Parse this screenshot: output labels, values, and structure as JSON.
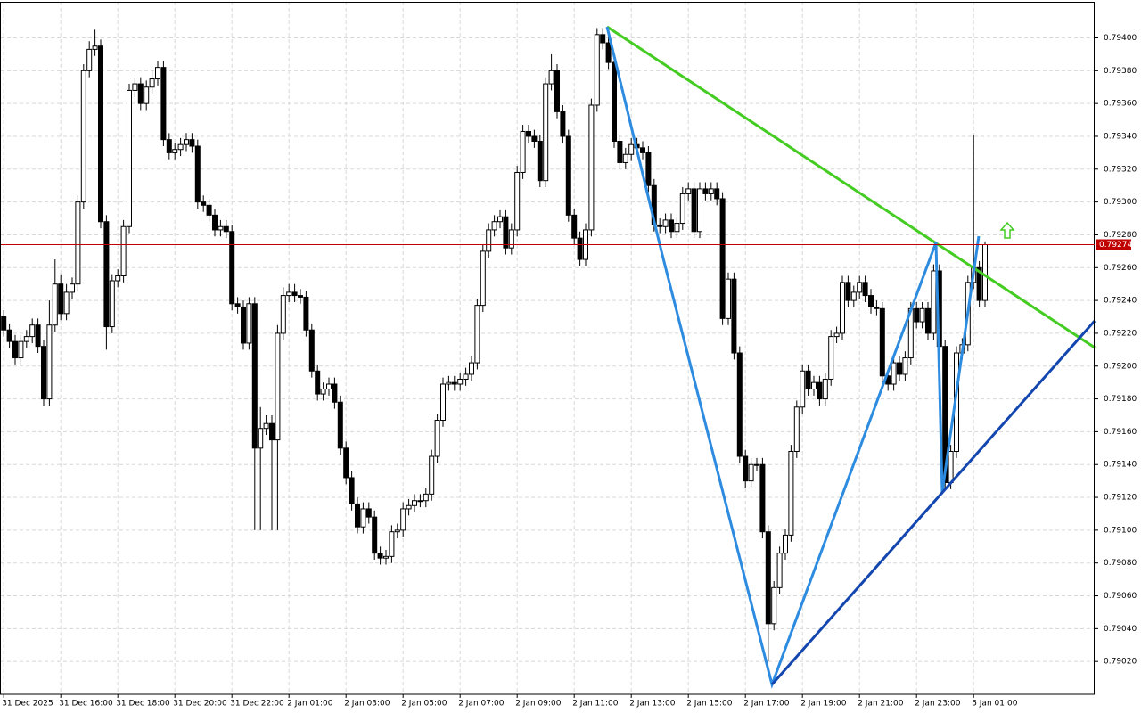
{
  "chart_data": {
    "type": "candlestick",
    "categories": [
      "31 Dec 2025",
      null,
      null,
      null,
      null,
      null,
      null,
      null,
      null,
      null,
      "31 Dec 16:00",
      null,
      null,
      null,
      null,
      null,
      null,
      null,
      null,
      null,
      "31 Dec 18:00",
      null,
      null,
      null,
      null,
      null,
      null,
      null,
      null,
      null,
      "31 Dec 20:00",
      null,
      null,
      null,
      null,
      null,
      null,
      null,
      null,
      null,
      "31 Dec 22:00",
      null,
      null,
      null,
      null,
      null,
      null,
      null,
      null,
      null,
      "2 Jan 01:00",
      null,
      null,
      null,
      null,
      null,
      null,
      null,
      null,
      null,
      "2 Jan 03:00",
      null,
      null,
      null,
      null,
      null,
      null,
      null,
      null,
      null,
      "2 Jan 05:00",
      null,
      null,
      null,
      null,
      null,
      null,
      null,
      null,
      null,
      "2 Jan 07:00",
      null,
      null,
      null,
      null,
      null,
      null,
      null,
      null,
      null,
      "2 Jan 09:00",
      null,
      null,
      null,
      null,
      null,
      null,
      null,
      null,
      null,
      "2 Jan 11:00",
      null,
      null,
      null,
      null,
      null,
      null,
      null,
      null,
      null,
      "2 Jan 13:00",
      null,
      null,
      null,
      null,
      null,
      null,
      null,
      null,
      null,
      "2 Jan 15:00",
      null,
      null,
      null,
      null,
      null,
      null,
      null,
      null,
      null,
      "2 Jan 17:00",
      null,
      null,
      null,
      null,
      null,
      null,
      null,
      null,
      null,
      "2 Jan 19:00",
      null,
      null,
      null,
      null,
      null,
      null,
      null,
      null,
      null,
      "2 Jan 21:00",
      null,
      null,
      null,
      null,
      null,
      null,
      null,
      null,
      null,
      "2 Jan 23:00",
      null,
      null,
      null,
      null,
      null,
      null,
      null,
      null,
      null,
      "5 Jan 01:00",
      null,
      null
    ],
    "open": [
      0.7923,
      0.79222,
      0.79215,
      0.79205,
      0.79215,
      0.79218,
      0.79225,
      0.79212,
      0.7918,
      0.79225,
      0.7925,
      0.79232,
      0.79245,
      0.7925,
      0.793,
      0.7938,
      0.79393,
      0.79395,
      0.79288,
      0.79224,
      0.79252,
      0.79255,
      0.79285,
      0.79368,
      0.79372,
      0.7936,
      0.7937,
      0.79375,
      0.79382,
      0.79338,
      0.7933,
      0.79332,
      0.79335,
      0.79338,
      0.79334,
      0.793,
      0.79298,
      0.79292,
      0.79283,
      0.79285,
      0.79282,
      0.79238,
      0.79236,
      0.79214,
      0.79238,
      0.7915,
      0.79162,
      0.79165,
      0.79155,
      0.7922,
      0.79243,
      0.79245,
      0.79243,
      0.79242,
      0.79222,
      0.79197,
      0.79183,
      0.79186,
      0.79189,
      0.79178,
      0.7915,
      0.79132,
      0.79116,
      0.79102,
      0.79113,
      0.79108,
      0.79086,
      0.79083,
      0.79084,
      0.79099,
      0.791,
      0.79113,
      0.79115,
      0.79118,
      0.79118,
      0.79122,
      0.79145,
      0.79167,
      0.79189,
      0.7919,
      0.79189,
      0.79192,
      0.79195,
      0.79202,
      0.79237,
      0.7927,
      0.79283,
      0.79288,
      0.79291,
      0.79272,
      0.79283,
      0.79318,
      0.79343,
      0.7934,
      0.79337,
      0.79313,
      0.79372,
      0.7938,
      0.79355,
      0.7934,
      0.79292,
      0.79278,
      0.79265,
      0.79283,
      0.79359,
      0.79402,
      0.79397,
      0.79385,
      0.79337,
      0.79324,
      0.79329,
      0.79335,
      0.79333,
      0.7933,
      0.7931,
      0.79286,
      0.79285,
      0.79289,
      0.79282,
      0.79287,
      0.79305,
      0.79308,
      0.79282,
      0.79308,
      0.79305,
      0.79308,
      0.79302,
      0.79229,
      0.79253,
      0.79208,
      0.79145,
      0.7913,
      0.7914,
      0.7914,
      0.79099,
      0.79043,
      0.79065,
      0.79086,
      0.79097,
      0.79148,
      0.79175,
      0.79197,
      0.79186,
      0.7919,
      0.7918,
      0.79192,
      0.79218,
      0.7922,
      0.79251,
      0.7924,
      0.79245,
      0.79251,
      0.79243,
      0.79236,
      0.79235,
      0.79194,
      0.79189,
      0.79202,
      0.79195,
      0.79205,
      0.79235,
      0.79227,
      0.79235,
      0.7922,
      0.79258,
      0.79212,
      0.79129,
      0.79148,
      0.79208,
      0.79213,
      0.79251,
      0.7926,
      0.7924
    ],
    "high": [
      0.79234,
      0.79226,
      0.79219,
      0.79219,
      0.79222,
      0.79229,
      0.79229,
      0.79216,
      0.7924,
      0.79265,
      0.79256,
      0.7925,
      0.79254,
      0.79304,
      0.79384,
      0.79398,
      0.79405,
      0.79399,
      0.79292,
      0.79256,
      0.79259,
      0.79289,
      0.79372,
      0.79376,
      0.79376,
      0.79374,
      0.7938,
      0.79386,
      0.79386,
      0.79342,
      0.79336,
      0.79339,
      0.79342,
      0.79342,
      0.79338,
      0.79304,
      0.79302,
      0.79296,
      0.79289,
      0.79289,
      0.79286,
      0.79242,
      0.7924,
      0.79242,
      0.79242,
      0.79175,
      0.7917,
      0.7917,
      0.79225,
      0.79248,
      0.7925,
      0.7925,
      0.79247,
      0.79246,
      0.79226,
      0.79201,
      0.7919,
      0.79193,
      0.79193,
      0.79182,
      0.79154,
      0.79136,
      0.7912,
      0.79117,
      0.79117,
      0.79112,
      0.7909,
      0.79088,
      0.79103,
      0.79104,
      0.79117,
      0.79119,
      0.79122,
      0.79122,
      0.79126,
      0.79149,
      0.79171,
      0.79193,
      0.79194,
      0.79194,
      0.79196,
      0.79199,
      0.79206,
      0.79241,
      0.79274,
      0.79287,
      0.79292,
      0.79295,
      0.79295,
      0.79287,
      0.79322,
      0.79347,
      0.79347,
      0.79344,
      0.79341,
      0.79376,
      0.7939,
      0.79384,
      0.79359,
      0.79344,
      0.79296,
      0.79282,
      0.79287,
      0.79363,
      0.79406,
      0.79406,
      0.79401,
      0.79389,
      0.79341,
      0.79333,
      0.79339,
      0.79339,
      0.79337,
      0.79334,
      0.79314,
      0.7929,
      0.79293,
      0.79293,
      0.79291,
      0.79309,
      0.79312,
      0.79312,
      0.79312,
      0.79312,
      0.79312,
      0.79312,
      0.79306,
      0.79257,
      0.79257,
      0.79212,
      0.79149,
      0.79144,
      0.79144,
      0.79144,
      0.79103,
      0.79069,
      0.7909,
      0.79101,
      0.79152,
      0.79179,
      0.79201,
      0.79201,
      0.79194,
      0.79194,
      0.79196,
      0.79222,
      0.79224,
      0.79255,
      0.79255,
      0.79249,
      0.79255,
      0.79255,
      0.79247,
      0.7924,
      0.79239,
      0.79198,
      0.79206,
      0.79206,
      0.79209,
      0.79239,
      0.79239,
      0.79239,
      0.79239,
      0.79262,
      0.79262,
      0.79216,
      0.79152,
      0.79212,
      0.79217,
      0.79255,
      0.79341,
      0.79264,
      0.79276
    ],
    "low": [
      0.79218,
      0.79211,
      0.79201,
      0.79201,
      0.79211,
      0.79214,
      0.79208,
      0.79176,
      0.79176,
      0.79221,
      0.79228,
      0.79228,
      0.79241,
      0.79246,
      0.79296,
      0.79376,
      0.79389,
      0.79284,
      0.7921,
      0.7922,
      0.79248,
      0.79251,
      0.79281,
      0.79364,
      0.79356,
      0.79356,
      0.79366,
      0.79371,
      0.79334,
      0.79326,
      0.79326,
      0.79328,
      0.79331,
      0.7933,
      0.79296,
      0.79294,
      0.79288,
      0.79279,
      0.79279,
      0.79278,
      0.79234,
      0.79232,
      0.7921,
      0.7921,
      0.791,
      0.791,
      0.79158,
      0.791,
      0.791,
      0.79216,
      0.79239,
      0.79239,
      0.79238,
      0.79218,
      0.79193,
      0.79179,
      0.79179,
      0.79182,
      0.79174,
      0.79146,
      0.79128,
      0.79112,
      0.79098,
      0.79098,
      0.79104,
      0.79082,
      0.79079,
      0.79079,
      0.7908,
      0.79095,
      0.79096,
      0.79109,
      0.79111,
      0.79114,
      0.79114,
      0.79118,
      0.79141,
      0.79163,
      0.79185,
      0.79185,
      0.79185,
      0.79188,
      0.79191,
      0.79198,
      0.79233,
      0.79266,
      0.79279,
      0.79284,
      0.79268,
      0.79268,
      0.79279,
      0.79314,
      0.79336,
      0.79333,
      0.79309,
      0.79309,
      0.79368,
      0.79351,
      0.79336,
      0.79288,
      0.79274,
      0.79261,
      0.79261,
      0.79279,
      0.79355,
      0.79393,
      0.79381,
      0.79333,
      0.7932,
      0.7932,
      0.79325,
      0.79329,
      0.79326,
      0.79306,
      0.79282,
      0.79281,
      0.79281,
      0.79278,
      0.79278,
      0.79283,
      0.79301,
      0.79278,
      0.79278,
      0.79301,
      0.79301,
      0.79298,
      0.79225,
      0.79225,
      0.79204,
      0.79141,
      0.79126,
      0.79126,
      0.79136,
      0.79095,
      0.7902,
      0.79039,
      0.79061,
      0.79082,
      0.79093,
      0.79144,
      0.79171,
      0.79182,
      0.79182,
      0.79176,
      0.79176,
      0.79188,
      0.79214,
      0.79216,
      0.79236,
      0.79236,
      0.79241,
      0.79239,
      0.79232,
      0.79231,
      0.7919,
      0.79185,
      0.79185,
      0.79191,
      0.79191,
      0.79201,
      0.79223,
      0.79223,
      0.79216,
      0.79216,
      0.79208,
      0.79125,
      0.79125,
      0.79144,
      0.79204,
      0.79209,
      0.79247,
      0.79236,
      0.79236
    ],
    "close": [
      0.79222,
      0.79215,
      0.79205,
      0.79215,
      0.79218,
      0.79225,
      0.79212,
      0.7918,
      0.79225,
      0.7925,
      0.79232,
      0.79245,
      0.7925,
      0.793,
      0.7938,
      0.79393,
      0.79395,
      0.79288,
      0.79224,
      0.79252,
      0.79255,
      0.79285,
      0.79368,
      0.79372,
      0.7936,
      0.7937,
      0.79375,
      0.79382,
      0.79338,
      0.7933,
      0.79332,
      0.79335,
      0.79338,
      0.79334,
      0.793,
      0.79298,
      0.79292,
      0.79283,
      0.79285,
      0.79282,
      0.79238,
      0.79236,
      0.79214,
      0.79238,
      0.7915,
      0.79162,
      0.79165,
      0.79155,
      0.7922,
      0.79243,
      0.79245,
      0.79243,
      0.79242,
      0.79222,
      0.79197,
      0.79183,
      0.79186,
      0.79189,
      0.79178,
      0.7915,
      0.79132,
      0.79116,
      0.79102,
      0.79113,
      0.79108,
      0.79086,
      0.79083,
      0.79084,
      0.79099,
      0.791,
      0.79113,
      0.79115,
      0.79118,
      0.79118,
      0.79122,
      0.79145,
      0.79167,
      0.79189,
      0.7919,
      0.79189,
      0.79192,
      0.79195,
      0.79202,
      0.79237,
      0.7927,
      0.79283,
      0.79288,
      0.79291,
      0.79272,
      0.79283,
      0.79318,
      0.79343,
      0.7934,
      0.79337,
      0.79313,
      0.79372,
      0.7938,
      0.79355,
      0.7934,
      0.79292,
      0.79278,
      0.79265,
      0.79283,
      0.79359,
      0.79402,
      0.79397,
      0.79385,
      0.79337,
      0.79324,
      0.79329,
      0.79335,
      0.79333,
      0.7933,
      0.7931,
      0.79286,
      0.79285,
      0.79289,
      0.79282,
      0.79287,
      0.79305,
      0.79308,
      0.79282,
      0.79308,
      0.79305,
      0.79308,
      0.79302,
      0.79229,
      0.79253,
      0.79208,
      0.79145,
      0.7913,
      0.7914,
      0.7914,
      0.79099,
      0.79043,
      0.79065,
      0.79086,
      0.79097,
      0.79148,
      0.79175,
      0.79197,
      0.79186,
      0.7919,
      0.7918,
      0.79192,
      0.79218,
      0.7922,
      0.79251,
      0.7924,
      0.79245,
      0.79251,
      0.79243,
      0.79236,
      0.79235,
      0.79194,
      0.79189,
      0.79202,
      0.79195,
      0.79205,
      0.79235,
      0.79227,
      0.79235,
      0.7922,
      0.79258,
      0.79212,
      0.79129,
      0.79148,
      0.79208,
      0.79213,
      0.79251,
      0.7926,
      0.7924,
      0.79274
    ],
    "up_color": "#ffffff",
    "down_color": "#000000",
    "current_price": 0.79274,
    "current_price_color": "#c00000",
    "ylim": [
      0.79,
      0.79422
    ],
    "yticks": [
      {
        "value": 0.7902,
        "label": "0.79020"
      },
      {
        "value": 0.7904,
        "label": "0.79040"
      },
      {
        "value": 0.7906,
        "label": "0.79060"
      },
      {
        "value": 0.7908,
        "label": "0.79080"
      },
      {
        "value": 0.791,
        "label": "0.79100"
      },
      {
        "value": 0.7912,
        "label": "0.79120"
      },
      {
        "value": 0.7914,
        "label": "0.79140"
      },
      {
        "value": 0.7916,
        "label": "0.79160"
      },
      {
        "value": 0.7918,
        "label": "0.79180"
      },
      {
        "value": 0.792,
        "label": "0.79200"
      },
      {
        "value": 0.7922,
        "label": "0.79220"
      },
      {
        "value": 0.7924,
        "label": "0.79240"
      },
      {
        "value": 0.7926,
        "label": "0.79260"
      },
      {
        "value": 0.7928,
        "label": "0.79280"
      },
      {
        "value": 0.793,
        "label": "0.79300"
      },
      {
        "value": 0.7932,
        "label": "0.79320"
      },
      {
        "value": 0.7934,
        "label": "0.79340"
      },
      {
        "value": 0.7936,
        "label": "0.79360"
      },
      {
        "value": 0.7938,
        "label": "0.79380"
      },
      {
        "value": 0.794,
        "label": "0.79400"
      }
    ],
    "grid": true
  }
}
